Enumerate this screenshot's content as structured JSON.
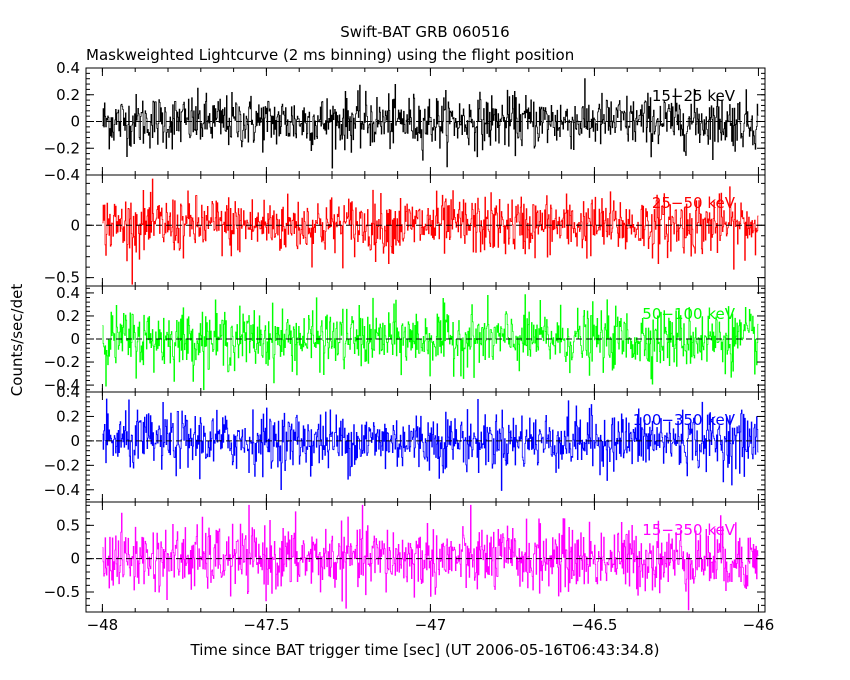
{
  "chart_data": {
    "type": "line",
    "title": "Swift-BAT GRB 060516",
    "subtitle": "Maskweighted Lightcurve (2 ms binning) using the flight position",
    "xlabel": "Time since BAT trigger time [sec] (UT 2006-05-16T06:43:34.8)",
    "ylabel": "Counts/sec/det",
    "xlim": [
      -48.05,
      -45.98
    ],
    "x_ticks": [
      -48,
      -47.5,
      -47,
      -46.5,
      -46
    ],
    "x_tick_labels": [
      "−48",
      "−47.5",
      "−47",
      "−46.5",
      "−46"
    ],
    "bin_width_sec": 0.002,
    "data_range_x": [
      -48.0,
      -46.0
    ],
    "panels": [
      {
        "band": "15−25 keV",
        "color": "#000000",
        "ylim": [
          -0.4,
          0.4
        ],
        "y_ticks": [
          -0.4,
          -0.2,
          0,
          0.2,
          0.4
        ],
        "y_tick_labels": [
          "−0.4",
          "−0.2",
          "0",
          "0.2",
          "0.4"
        ],
        "noise_sigma": 0.1,
        "y_min": -0.4,
        "y_max": 0.32
      },
      {
        "band": "25−50 keV",
        "color": "#ff0000",
        "ylim": [
          -0.58,
          0.48
        ],
        "y_ticks": [
          -0.5,
          0
        ],
        "y_tick_labels": [
          "−0.5",
          "0"
        ],
        "noise_sigma": 0.14,
        "y_min": -0.58,
        "y_max": 0.45
      },
      {
        "band": "50−100 keV",
        "color": "#00ff00",
        "ylim": [
          -0.46,
          0.46
        ],
        "y_ticks": [
          -0.4,
          -0.2,
          0,
          0.2,
          0.4
        ],
        "y_tick_labels": [
          "−0.4",
          "−0.2",
          "0",
          "0.2",
          "0.4"
        ],
        "noise_sigma": 0.13,
        "y_min": -0.44,
        "y_max": 0.44
      },
      {
        "band": "100−350 keV",
        "color": "#0000ff",
        "ylim": [
          -0.5,
          0.4
        ],
        "y_ticks": [
          -0.4,
          -0.2,
          0,
          0.2,
          0.4
        ],
        "y_tick_labels": [
          "−0.4",
          "−0.2",
          "0",
          "0.2",
          "0.4"
        ],
        "noise_sigma": 0.12,
        "y_min": -0.48,
        "y_max": 0.38
      },
      {
        "band": "15−350 keV",
        "color": "#ff00ff",
        "ylim": [
          -0.8,
          0.85
        ],
        "y_ticks": [
          -0.5,
          0,
          0.5
        ],
        "y_tick_labels": [
          "−0.5",
          "0",
          "0.5"
        ],
        "noise_sigma": 0.25,
        "y_min": -0.8,
        "y_max": 0.8
      }
    ]
  }
}
